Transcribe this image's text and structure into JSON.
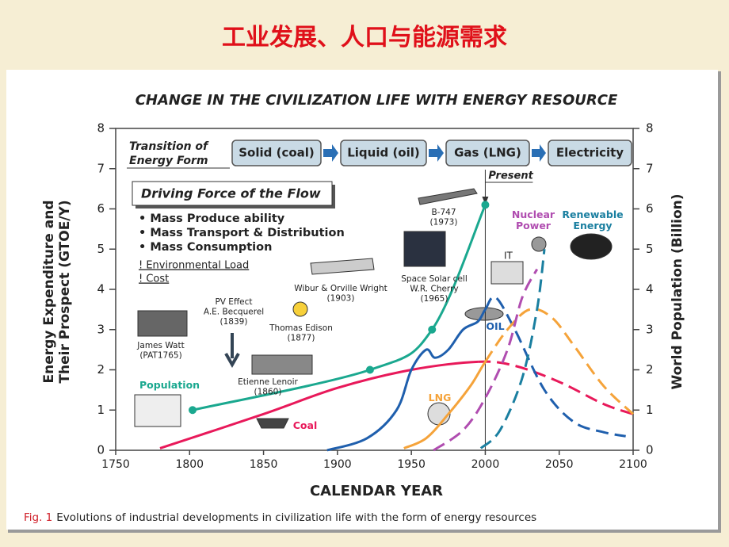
{
  "slide_title": "工业发展、人口与能源需求",
  "chart_data": {
    "type": "line",
    "title": "CHANGE IN THE CIVILIZATION LIFE WITH ENERGY RESOURCE",
    "x_label": "CALENDAR YEAR",
    "y_label": [
      "Energy Expenditure and",
      "Their Prospect (GTOE/Y)"
    ],
    "y2_label": "World Population (Billion)",
    "xlim": [
      1750,
      2100
    ],
    "xticks": [
      1750,
      1800,
      1850,
      1900,
      1950,
      2000,
      2050,
      2100
    ],
    "ylim": [
      0,
      8
    ],
    "yticks": [
      0,
      1,
      2,
      3,
      4,
      5,
      6,
      7,
      8
    ],
    "y2lim": [
      0,
      8
    ],
    "y2ticks": [
      0,
      1,
      2,
      3,
      4,
      5,
      6,
      7,
      8
    ],
    "present": {
      "x": 2000,
      "label": "Present"
    },
    "series": [
      {
        "name": "Population",
        "color": "#1aa88f",
        "axis": "y2",
        "markers": true,
        "x": [
          1802,
          1922,
          1964,
          2000
        ],
        "values": [
          1.0,
          2.0,
          3.0,
          6.1
        ]
      },
      {
        "name": "Coal",
        "color": "#e8195a",
        "x": [
          1780,
          1850,
          1900,
          1950,
          1995,
          2020,
          2050,
          2080,
          2100
        ],
        "values": [
          0.05,
          0.9,
          1.55,
          2.0,
          2.2,
          2.1,
          1.7,
          1.15,
          0.9
        ]
      },
      {
        "name": "OIL",
        "color": "#1f5fad",
        "x": [
          1893,
          1920,
          1940,
          1950,
          1960,
          1966,
          1975,
          1985,
          1995,
          2000,
          2007,
          2020,
          2040,
          2060,
          2080,
          2095
        ],
        "values": [
          0.0,
          0.3,
          1.0,
          2.0,
          2.5,
          2.3,
          2.5,
          3.0,
          3.2,
          3.5,
          3.8,
          3.0,
          1.5,
          0.7,
          0.45,
          0.35
        ]
      },
      {
        "name": "LNG",
        "color": "#f5a33a",
        "x": [
          1945,
          1960,
          1975,
          1990,
          2000,
          2015,
          2030,
          2045,
          2060,
          2080,
          2100
        ],
        "values": [
          0.05,
          0.3,
          0.9,
          1.6,
          2.2,
          3.0,
          3.5,
          3.3,
          2.6,
          1.6,
          0.9
        ]
      },
      {
        "name": "Nuclear Power",
        "color": "#b04db0",
        "dashed": true,
        "x": [
          1965,
          1985,
          2000,
          2015,
          2025,
          2035
        ],
        "values": [
          0.0,
          0.5,
          1.3,
          2.5,
          3.8,
          4.5
        ]
      },
      {
        "name": "Renewable Energy",
        "color": "#1a7fa0",
        "dashed": true,
        "x": [
          1997,
          2010,
          2025,
          2035,
          2040
        ],
        "values": [
          0.05,
          0.5,
          1.8,
          3.5,
          5.0
        ]
      }
    ],
    "transition": {
      "label": [
        "Transition of",
        "Energy Form"
      ],
      "stages": [
        "Solid (coal)",
        "Liquid (oil)",
        "Gas (LNG)",
        "Electricity"
      ]
    },
    "driving_force": {
      "title": "Driving Force of the Flow",
      "bullets": [
        "• Mass Produce ability",
        "• Mass Transport & Distribution",
        "• Mass Consumption"
      ],
      "concerns": [
        "! Environmental Load",
        "! Cost"
      ]
    },
    "annotations": {
      "b747": [
        "B-747",
        "(1973)"
      ],
      "solar": [
        "Space Solar cell",
        "W.R. Cherry",
        "(1965)"
      ],
      "wright": [
        "Wibur & Orville Wright",
        "(1903)"
      ],
      "pv": [
        "PV Effect",
        "A.E. Becquerel",
        "(1839)"
      ],
      "edison": [
        "Thomas Edison",
        "(1877)"
      ],
      "watt": [
        "James Watt",
        "(PAT1765)"
      ],
      "lenoir": [
        "Etienne Lenoir",
        "(1860)"
      ],
      "it": [
        "IT"
      ]
    }
  },
  "caption": {
    "label": "Fig. 1",
    "text": "Evolutions of industrial developments in civilization life with the form of energy resources"
  }
}
